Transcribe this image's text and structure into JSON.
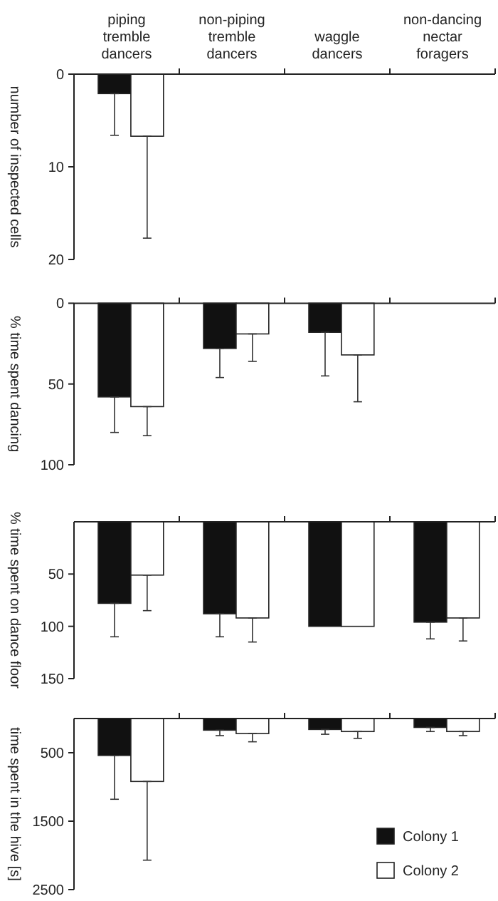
{
  "chart_data": [
    {
      "type": "bar",
      "ylabel": "number of inspected cells",
      "categories": [
        "piping tremble dancers",
        "non-piping tremble dancers",
        "waggle dancers",
        "non-dancing nectar foragers"
      ],
      "ylim": [
        20,
        0
      ],
      "yticks": [
        0,
        10,
        20
      ],
      "series": [
        {
          "color": "#111111",
          "values": [
            2.1,
            0,
            0,
            0
          ],
          "errors": [
            [
              2.1,
              6.6
            ],
            null,
            null,
            null
          ]
        },
        {
          "color": "#ffffff",
          "values": [
            6.7,
            0,
            0,
            0
          ],
          "errors": [
            [
              6.7,
              17.7
            ],
            null,
            null,
            null
          ]
        }
      ]
    },
    {
      "type": "bar",
      "ylabel": "% time spent dancing",
      "categories": [
        null,
        null,
        null,
        null
      ],
      "tick_labels": "y",
      "ylim": [
        100,
        0
      ],
      "yticks": [
        0,
        50,
        100
      ],
      "series": [
        {
          "color": "#111111",
          "values": [
            58,
            28,
            18,
            0
          ],
          "errors": [
            [
              58,
              80
            ],
            [
              28,
              46
            ],
            [
              18,
              45
            ],
            null
          ]
        },
        {
          "color": "#ffffff",
          "values": [
            64,
            19,
            32,
            0
          ],
          "errors": [
            [
              64,
              82
            ],
            [
              19,
              36
            ],
            [
              32,
              61
            ],
            null
          ]
        }
      ]
    },
    {
      "type": "bar",
      "ylabel": "% time spent on dance floor",
      "categories": [
        null,
        null,
        null,
        null
      ],
      "tick_labels": "y",
      "ylim": [
        150,
        0
      ],
      "yticks": [
        50,
        100,
        150
      ],
      "series": [
        {
          "color": "#111111",
          "values": [
            78,
            88,
            100,
            96
          ],
          "errors": [
            [
              78,
              110
            ],
            [
              88,
              110
            ],
            null,
            [
              96,
              112
            ]
          ]
        },
        {
          "color": "#ffffff",
          "values": [
            51,
            92,
            100,
            92
          ],
          "errors": [
            [
              51,
              85
            ],
            [
              92,
              115
            ],
            null,
            [
              92,
              114
            ]
          ]
        }
      ]
    },
    {
      "type": "bar",
      "ylabel": "time spent in the hive [s]",
      "categories": [
        null,
        null,
        null,
        null
      ],
      "tick_labels": "y",
      "ylim": [
        2500,
        0
      ],
      "yticks": [
        500,
        1500,
        2500
      ],
      "legend": "bottom right",
      "series": [
        {
          "name": "Colony 1",
          "color": "#111111",
          "values": [
            540,
            170,
            160,
            130
          ],
          "errors": [
            [
              540,
              1180
            ],
            [
              170,
              250
            ],
            [
              160,
              230
            ],
            [
              130,
              190
            ]
          ]
        },
        {
          "name": "Colony 2",
          "color": "#ffffff",
          "values": [
            920,
            220,
            190,
            190
          ],
          "errors": [
            [
              920,
              2070
            ],
            [
              220,
              340
            ],
            [
              190,
              290
            ],
            [
              190,
              250
            ]
          ]
        }
      ]
    }
  ]
}
